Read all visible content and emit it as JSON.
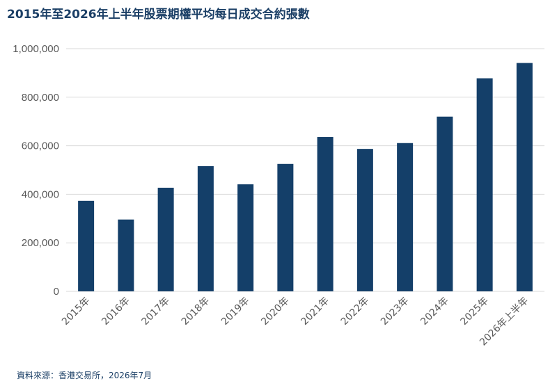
{
  "title": "2015年至2026年上半年股票期權平均每日成交合約張數",
  "source": "資料來源：香港交易所，2026年7月",
  "colors": {
    "bar": "#143f69",
    "grid": "#d9d9d9",
    "axis_text": "#595959",
    "title": "#1b3f66"
  },
  "chart_data": {
    "type": "bar",
    "title": "2015年至2026年上半年股票期權平均每日成交合約張數",
    "xlabel": "",
    "ylabel": "",
    "categories": [
      "2015年",
      "2016年",
      "2017年",
      "2018年",
      "2019年",
      "2020年",
      "2021年",
      "2022年",
      "2023年",
      "2024年",
      "2025年",
      "2026年上半年"
    ],
    "values": [
      373000,
      296000,
      427000,
      516000,
      441000,
      525000,
      636000,
      587000,
      611000,
      720000,
      878000,
      941000
    ],
    "ylim": [
      0,
      1000000
    ],
    "yticks": [
      0,
      200000,
      400000,
      600000,
      800000,
      1000000
    ],
    "ytick_labels": [
      "0",
      "200,000",
      "400,000",
      "600,000",
      "800,000",
      "1,000,000"
    ],
    "grid": true,
    "legend": "none"
  }
}
